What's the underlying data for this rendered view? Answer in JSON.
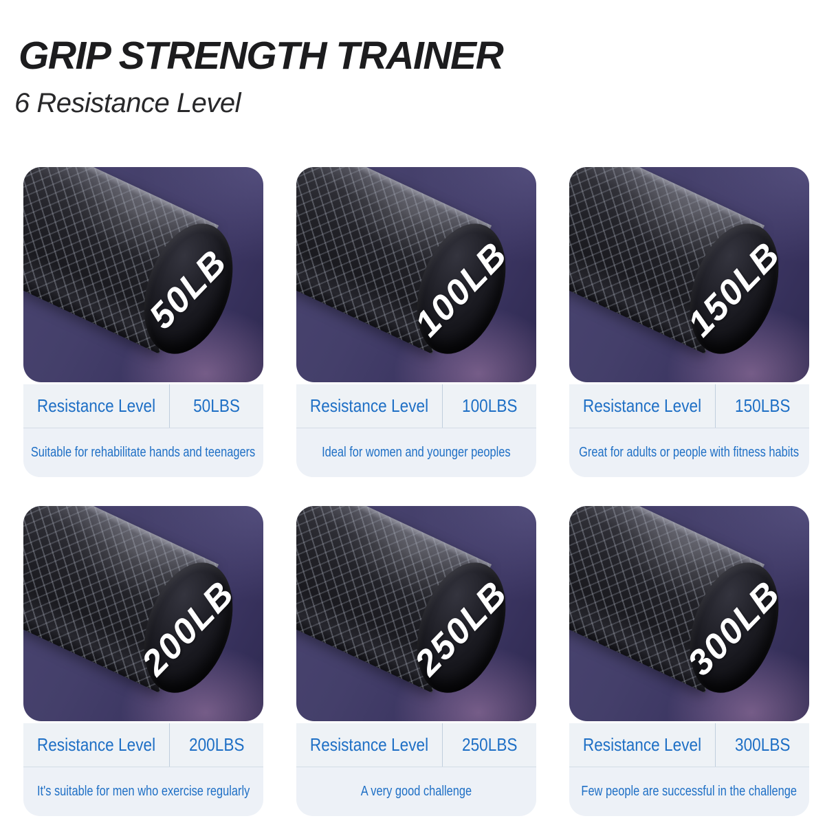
{
  "header": {
    "title": "GRIP STRENGTH TRAINER",
    "subtitle": "6 Resistance Level"
  },
  "colors": {
    "text_blue": "#1e6fc5",
    "panel_bg": "#eef2f6",
    "photo_bg_purple": "#3f3a63",
    "glow_pink": "#d6a0cd",
    "handle_black": "#1a1a1f",
    "title_black": "#1c1c1e"
  },
  "cards": [
    {
      "cap_label": "50LB",
      "row_label": "Resistance Level",
      "row_value": "50LBS",
      "description": "Suitable for rehabilitate hands and teenagers"
    },
    {
      "cap_label": "100LB",
      "row_label": "Resistance Level",
      "row_value": "100LBS",
      "description": "Ideal for women and younger peoples"
    },
    {
      "cap_label": "150LB",
      "row_label": "Resistance Level",
      "row_value": "150LBS",
      "description": "Great for adults or people with fitness habits"
    },
    {
      "cap_label": "200LB",
      "row_label": "Resistance Level",
      "row_value": "200LBS",
      "description": "It's suitable for men who exercise regularly"
    },
    {
      "cap_label": "250LB",
      "row_label": "Resistance Level",
      "row_value": "250LBS",
      "description": "A very good challenge"
    },
    {
      "cap_label": "300LB",
      "row_label": "Resistance Level",
      "row_value": "300LBS",
      "description": "Few people are successful in the challenge"
    }
  ]
}
